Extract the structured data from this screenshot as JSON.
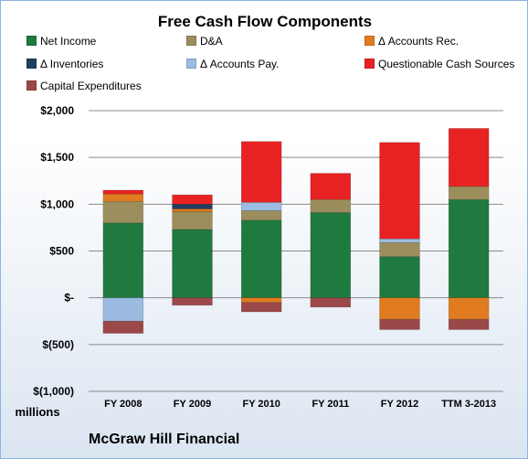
{
  "chart_data": {
    "type": "bar",
    "stacked": true,
    "title": "Free Cash Flow Components",
    "unit_label": "millions",
    "ylim": [
      -1000,
      2000
    ],
    "y_ticks": [
      {
        "value": 2000,
        "label": "$2,000"
      },
      {
        "value": 1500,
        "label": "$1,500"
      },
      {
        "value": 1000,
        "label": "$1,000"
      },
      {
        "value": 500,
        "label": "$500"
      },
      {
        "value": 0,
        "label": "$-"
      },
      {
        "value": -500,
        "label": "$(500)"
      },
      {
        "value": -1000,
        "label": "$(1,000)"
      }
    ],
    "grid": true,
    "legend_position": "top",
    "categories": [
      "FY 2008",
      "FY 2009",
      "FY 2010",
      "FY 2011",
      "FY 2012",
      "TTM 3-2013"
    ],
    "series": [
      {
        "name": "Net Income",
        "color": "#1f7a3f",
        "values": [
          800,
          730,
          830,
          910,
          440,
          1050
        ]
      },
      {
        "name": "D&A",
        "color": "#9c8e5c",
        "values": [
          230,
          190,
          100,
          140,
          150,
          140
        ]
      },
      {
        "name": "Δ Accounts Rec.",
        "color": "#e07b1f",
        "values": [
          80,
          30,
          -50,
          0,
          -230,
          -230
        ]
      },
      {
        "name": "Δ Inventories",
        "color": "#1f3f60",
        "values": [
          0,
          50,
          0,
          0,
          0,
          0
        ]
      },
      {
        "name": "Δ Accounts Pay.",
        "color": "#9bbbe0",
        "values": [
          -250,
          0,
          90,
          0,
          40,
          0
        ]
      },
      {
        "name": "Questionable Cash Sources",
        "color": "#e82222",
        "values": [
          40,
          100,
          650,
          280,
          1030,
          620
        ]
      },
      {
        "name": "Capital Expenditures",
        "color": "#9b4848",
        "values": [
          -130,
          -80,
          -100,
          -100,
          -110,
          -110
        ]
      }
    ]
  },
  "footer": "McGraw Hill Financial"
}
